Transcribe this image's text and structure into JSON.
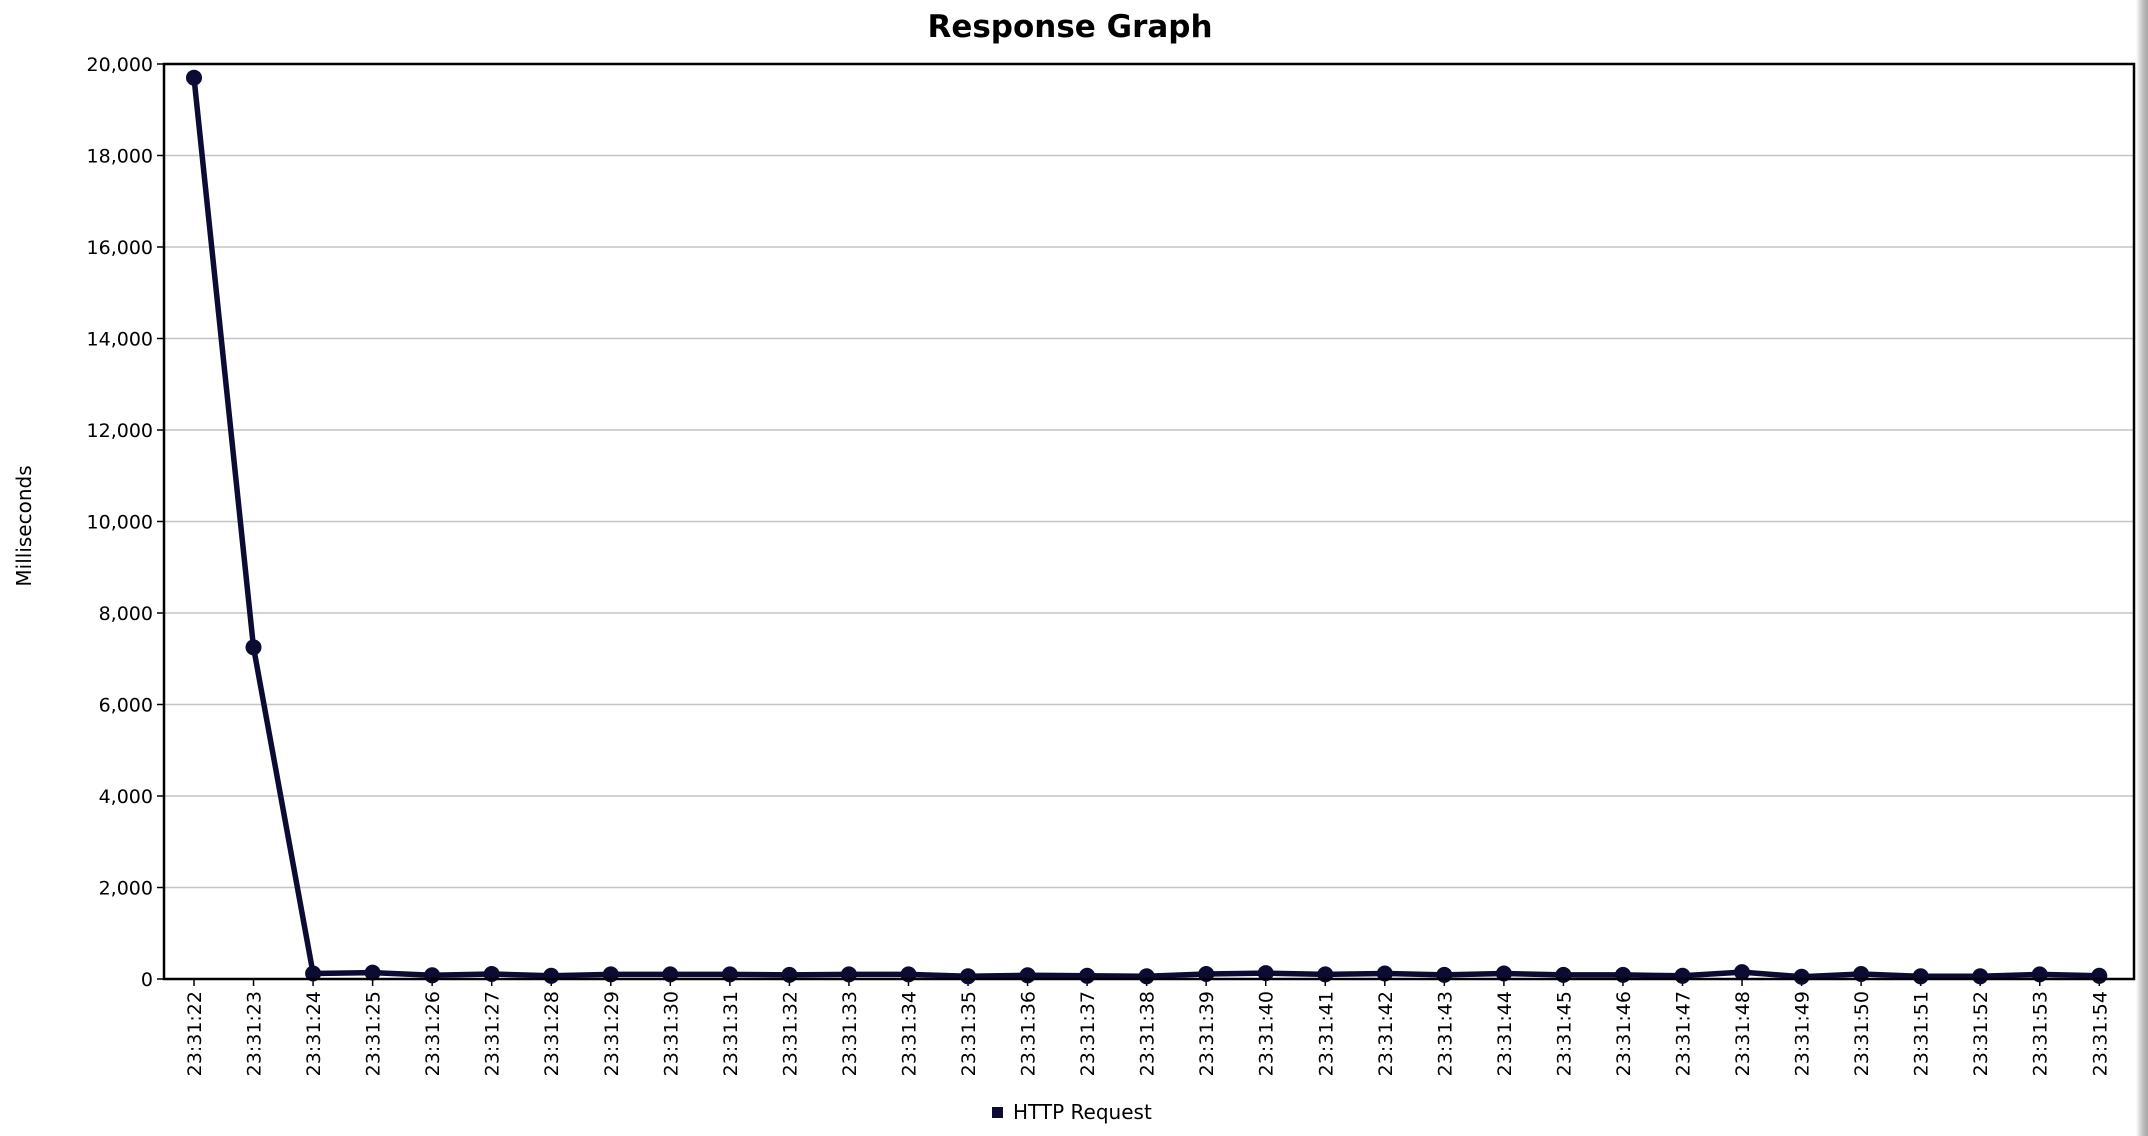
{
  "chart_data": {
    "type": "line",
    "title": "Response Graph",
    "xlabel": "",
    "ylabel": "Milliseconds",
    "ylim": [
      0,
      20000
    ],
    "y_ticks": [
      "0",
      "2,000",
      "4,000",
      "6,000",
      "8,000",
      "10,000",
      "12,000",
      "14,000",
      "16,000",
      "18,000",
      "20,000"
    ],
    "categories": [
      "23:31:22",
      "23:31:23",
      "23:31:24",
      "23:31:25",
      "23:31:26",
      "23:31:27",
      "23:31:28",
      "23:31:29",
      "23:31:30",
      "23:31:31",
      "23:31:32",
      "23:31:33",
      "23:31:34",
      "23:31:35",
      "23:31:36",
      "23:31:37",
      "23:31:38",
      "23:31:39",
      "23:31:40",
      "23:31:41",
      "23:31:42",
      "23:31:43",
      "23:31:44",
      "23:31:45",
      "23:31:46",
      "23:31:47",
      "23:31:48",
      "23:31:49",
      "23:31:50",
      "23:31:51",
      "23:31:52",
      "23:31:53",
      "23:31:54"
    ],
    "series": [
      {
        "name": "HTTP Request",
        "color": "#0b0b33",
        "values": [
          19700,
          7250,
          120,
          140,
          80,
          110,
          70,
          100,
          100,
          100,
          90,
          100,
          100,
          60,
          80,
          70,
          60,
          110,
          130,
          100,
          120,
          90,
          120,
          90,
          90,
          70,
          150,
          50,
          110,
          60,
          60,
          100,
          70
        ]
      }
    ],
    "grid": true,
    "legend_position": "bottom"
  }
}
